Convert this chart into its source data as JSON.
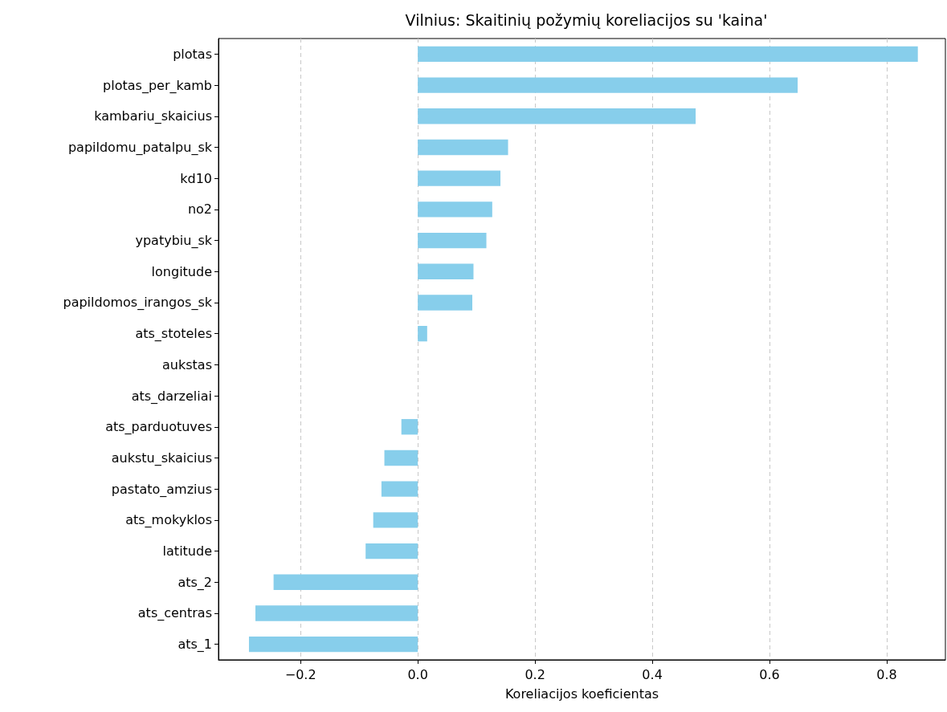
{
  "chart_data": {
    "type": "bar",
    "orientation": "horizontal",
    "title": "Vilnius: Skaitinių požymių koreliacijos su 'kaina'",
    "xlabel": "Koreliacijos koeficientas",
    "categories": [
      "plotas",
      "plotas_per_kamb",
      "kambariu_skaicius",
      "papildomu_patalpu_sk",
      "kd10",
      "no2",
      "ypatybiu_sk",
      "longitude",
      "papildomos_irangos_sk",
      "ats_stoteles",
      "aukstas",
      "ats_darzeliai",
      "ats_parduotuves",
      "aukstu_skaicius",
      "pastato_amzius",
      "ats_mokyklos",
      "latitude",
      "ats_2",
      "ats_centras",
      "ats_1"
    ],
    "values": [
      0.853,
      0.648,
      0.474,
      0.154,
      0.141,
      0.127,
      0.117,
      0.095,
      0.093,
      0.016,
      0,
      0,
      -0.028,
      -0.057,
      -0.062,
      -0.076,
      -0.089,
      -0.246,
      -0.277,
      -0.288
    ],
    "color": "#87ceeb",
    "xlim": [
      -0.34,
      0.9
    ],
    "xticks": [
      {
        "value": -0.2,
        "label": "−0.2"
      },
      {
        "value": 0,
        "label": "0.0"
      },
      {
        "value": 0.2,
        "label": "0.2"
      },
      {
        "value": 0.4,
        "label": "0.4"
      },
      {
        "value": 0.6,
        "label": "0.6"
      },
      {
        "value": 0.8,
        "label": "0.8"
      }
    ],
    "grid": "x"
  }
}
